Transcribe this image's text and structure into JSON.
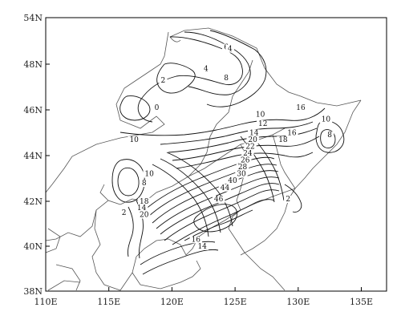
{
  "map": {
    "x_axis": {
      "ticks": [
        {
          "value": 110,
          "label": "110E"
        },
        {
          "value": 115,
          "label": "115E"
        },
        {
          "value": 120,
          "label": "120E"
        },
        {
          "value": 125,
          "label": "125E"
        },
        {
          "value": 130,
          "label": "130E"
        },
        {
          "value": 135,
          "label": "135E"
        }
      ],
      "range": [
        110,
        137
      ]
    },
    "y_axis": {
      "ticks": [
        {
          "value": 38,
          "label": "38N"
        },
        {
          "value": 40,
          "label": "40N"
        },
        {
          "value": 42,
          "label": "42N"
        },
        {
          "value": 44,
          "label": "44N"
        },
        {
          "value": 46,
          "label": "46N"
        },
        {
          "value": 48,
          "label": "48N"
        },
        {
          "value": 54,
          "label": "54N"
        }
      ],
      "range": [
        38,
        54
      ]
    },
    "contour_labels": [
      {
        "text": "6",
        "lon": 124.3,
        "lat": 49.9
      },
      {
        "text": "4",
        "lon": 124.6,
        "lat": 49.7
      },
      {
        "text": "4",
        "lon": 122.7,
        "lat": 47.7
      },
      {
        "text": "2",
        "lon": 119.3,
        "lat": 47.2
      },
      {
        "text": "8",
        "lon": 124.3,
        "lat": 47.3
      },
      {
        "text": "0",
        "lon": 118.8,
        "lat": 46.0
      },
      {
        "text": "10",
        "lon": 127.0,
        "lat": 45.7
      },
      {
        "text": "12",
        "lon": 127.2,
        "lat": 45.3
      },
      {
        "text": "14",
        "lon": 126.5,
        "lat": 44.9
      },
      {
        "text": "16",
        "lon": 130.2,
        "lat": 46.0
      },
      {
        "text": "16",
        "lon": 129.5,
        "lat": 44.9
      },
      {
        "text": "18",
        "lon": 128.8,
        "lat": 44.6
      },
      {
        "text": "10",
        "lon": 132.2,
        "lat": 45.5
      },
      {
        "text": "8",
        "lon": 132.5,
        "lat": 44.8
      },
      {
        "text": "10",
        "lon": 117.0,
        "lat": 44.6
      },
      {
        "text": "20",
        "lon": 126.4,
        "lat": 44.6
      },
      {
        "text": "22",
        "lon": 126.2,
        "lat": 44.3
      },
      {
        "text": "24",
        "lon": 126.0,
        "lat": 44.0
      },
      {
        "text": "26",
        "lon": 125.8,
        "lat": 43.7
      },
      {
        "text": "28",
        "lon": 125.6,
        "lat": 43.4
      },
      {
        "text": "30",
        "lon": 125.5,
        "lat": 43.1
      },
      {
        "text": "10",
        "lon": 118.2,
        "lat": 43.1
      },
      {
        "text": "8",
        "lon": 117.8,
        "lat": 42.7
      },
      {
        "text": "40",
        "lon": 124.8,
        "lat": 42.8
      },
      {
        "text": "44",
        "lon": 124.2,
        "lat": 42.5
      },
      {
        "text": "46",
        "lon": 123.7,
        "lat": 42.0
      },
      {
        "text": "18",
        "lon": 117.8,
        "lat": 41.9
      },
      {
        "text": "14",
        "lon": 117.6,
        "lat": 41.6
      },
      {
        "text": "20",
        "lon": 117.8,
        "lat": 41.3
      },
      {
        "text": "2",
        "lon": 116.2,
        "lat": 41.4
      },
      {
        "text": "2",
        "lon": 129.2,
        "lat": 42.0
      },
      {
        "text": "16",
        "lon": 121.9,
        "lat": 40.2
      },
      {
        "text": "14",
        "lon": 122.4,
        "lat": 39.9
      }
    ]
  }
}
